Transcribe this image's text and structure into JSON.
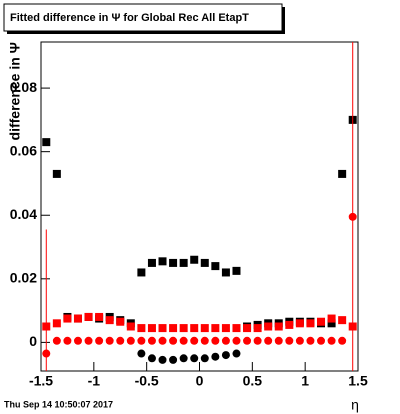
{
  "chart_data": {
    "type": "scatter",
    "title": "Fitted difference in  Ψ  for Global Rec All EtapT",
    "y_label": "difference in  Ψ",
    "x_label": "η",
    "timestamp": "Thu Sep 14 10:50:07 2017",
    "x": [
      -1.45,
      -1.35,
      -1.25,
      -1.15,
      -1.05,
      -0.95,
      -0.85,
      -0.75,
      -0.65,
      -0.55,
      -0.45,
      -0.35,
      -0.25,
      -0.15,
      -0.05,
      0.05,
      0.15,
      0.25,
      0.35,
      0.45,
      0.55,
      0.65,
      0.75,
      0.85,
      0.95,
      1.05,
      1.15,
      1.25,
      1.35,
      1.45
    ],
    "series": [
      {
        "color": "#000000",
        "marker": "square",
        "values": [
          0.063,
          0.053,
          0.008,
          0.0075,
          0.008,
          0.0075,
          0.008,
          0.007,
          0.006,
          0.022,
          0.025,
          0.0255,
          0.025,
          0.025,
          0.026,
          0.025,
          0.024,
          0.022,
          0.0225,
          0.005,
          0.0055,
          0.006,
          0.006,
          0.0065,
          0.0065,
          0.0065,
          0.006,
          0.006,
          0.053,
          0.07
        ]
      },
      {
        "color": "#ff0000",
        "marker": "square",
        "values": [
          0.005,
          0.006,
          0.0075,
          0.0075,
          0.008,
          0.008,
          0.007,
          0.0065,
          0.005,
          0.0045,
          0.0045,
          0.0045,
          0.0045,
          0.0045,
          0.0045,
          0.0045,
          0.0045,
          0.0045,
          0.0045,
          0.0045,
          0.0045,
          0.005,
          0.005,
          0.0055,
          0.006,
          0.006,
          0.0065,
          0.0075,
          0.007,
          0.005
        ]
      },
      {
        "color": "#000000",
        "marker": "circle",
        "values": [
          null,
          null,
          null,
          null,
          null,
          null,
          null,
          null,
          null,
          -0.0035,
          -0.005,
          -0.0055,
          -0.0055,
          -0.005,
          -0.005,
          -0.005,
          -0.0045,
          -0.004,
          -0.0035,
          null,
          null,
          null,
          null,
          null,
          null,
          null,
          null,
          null,
          null,
          null
        ]
      },
      {
        "color": "#ff0000",
        "marker": "circle",
        "values": [
          -0.0035,
          0.0005,
          0.0005,
          0.0005,
          0.0005,
          0.0005,
          0.0005,
          0.0005,
          0.0005,
          0.0005,
          0.0005,
          0.0005,
          0.0005,
          0.0005,
          0.0005,
          0.0005,
          0.0005,
          0.0005,
          0.0005,
          0.0005,
          0.0005,
          0.0005,
          0.0005,
          0.0005,
          0.0005,
          0.0005,
          0.0005,
          0.0005,
          0.0005,
          0.0395
        ],
        "errors": [
          0.039,
          null,
          null,
          null,
          null,
          null,
          null,
          null,
          null,
          null,
          null,
          null,
          null,
          null,
          null,
          null,
          null,
          null,
          null,
          null,
          null,
          null,
          null,
          null,
          null,
          null,
          null,
          null,
          null,
          0.06
        ]
      }
    ],
    "xlim": [
      -1.5,
      1.5
    ],
    "xticks": [
      -1.5,
      -1,
      -0.5,
      0,
      0.5,
      1,
      1.5
    ],
    "ylim": [
      -0.009,
      0.0945
    ],
    "yticks": [
      0,
      0.02,
      0.04,
      0.06,
      0.08
    ]
  }
}
